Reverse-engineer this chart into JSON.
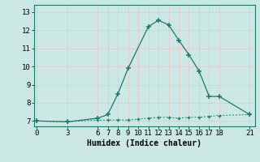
{
  "xlabel": "Humidex (Indice chaleur)",
  "background_color": "#cce8e4",
  "grid_color": "#e8c8c8",
  "line_color": "#1a7a6e",
  "x_ticks": [
    0,
    3,
    6,
    7,
    8,
    9,
    10,
    11,
    12,
    13,
    14,
    15,
    16,
    17,
    18,
    21
  ],
  "y_ticks": [
    7,
    8,
    9,
    10,
    11,
    12,
    13
  ],
  "ylim": [
    6.7,
    13.4
  ],
  "xlim": [
    -0.3,
    21.5
  ],
  "line1_x": [
    0,
    3,
    6,
    7,
    8,
    9,
    11,
    12,
    13,
    14,
    15,
    16,
    17,
    18,
    21
  ],
  "line1_y": [
    7.0,
    6.95,
    7.15,
    7.35,
    8.5,
    9.9,
    12.2,
    12.55,
    12.3,
    11.45,
    10.65,
    9.75,
    8.35,
    8.35,
    7.35
  ],
  "line2_x": [
    0,
    3,
    6,
    7,
    8,
    9,
    10,
    11,
    12,
    13,
    14,
    15,
    16,
    17,
    18,
    21
  ],
  "line2_y": [
    7.0,
    6.95,
    7.05,
    7.05,
    7.05,
    7.05,
    7.1,
    7.15,
    7.2,
    7.2,
    7.15,
    7.2,
    7.2,
    7.25,
    7.3,
    7.35
  ],
  "tick_fontsize": 6.5,
  "xlabel_fontsize": 7
}
